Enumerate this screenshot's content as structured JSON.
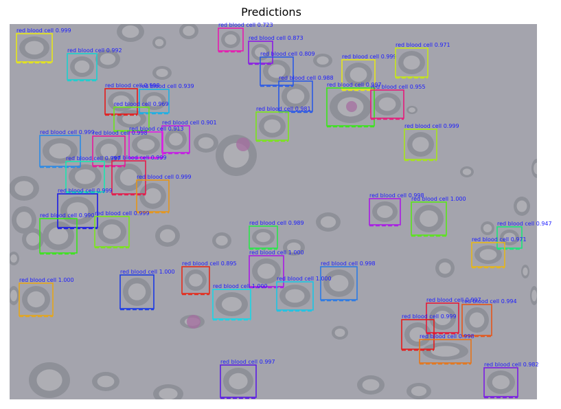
{
  "title": "Predictions",
  "image": {
    "background_color": "#a4a4ad",
    "cell_color": "#8e9098",
    "cell_inner_color": "#b6b5bb",
    "stain_color": "#a46ea0"
  },
  "label_text_color": "#1a1aff",
  "detections": [
    {
      "label": "red blood cell",
      "score": "0.999",
      "color": "#e6e61a"
    },
    {
      "label": "red blood cell",
      "score": "0.992",
      "color": "#1ad0d0"
    },
    {
      "label": "red blood cell",
      "score": "0.723",
      "color": "#e61ab0"
    },
    {
      "label": "red blood cell",
      "score": "0.873",
      "color": "#8a1ae6"
    },
    {
      "label": "red blood cell",
      "score": "0.809",
      "color": "#2a5ae6"
    },
    {
      "label": "red blood cell",
      "score": "0.999",
      "color": "#e6e61a"
    },
    {
      "label": "red blood cell",
      "score": "0.971",
      "color": "#c6e61a"
    },
    {
      "label": "red blood cell",
      "score": "0.988",
      "color": "#2a5ae6"
    },
    {
      "label": "red blood cell",
      "score": "0.997",
      "color": "#3ae61a"
    },
    {
      "label": "red blood cell",
      "score": "0.955",
      "color": "#e61a7a"
    },
    {
      "label": "red blood cell",
      "score": "0.998",
      "color": "#e61a1a"
    },
    {
      "label": "red blood cell",
      "score": "0.939",
      "color": "#1ab0e6"
    },
    {
      "label": "red blood cell",
      "score": "0.969",
      "color": "#6ae61a"
    },
    {
      "label": "red blood cell",
      "score": "0.981",
      "color": "#7ae61a"
    },
    {
      "label": "red blood cell",
      "score": "0.901",
      "color": "#c61ae6"
    },
    {
      "label": "red blood cell",
      "score": "0.913",
      "color": "#e61ae6"
    },
    {
      "label": "red blood cell",
      "score": "0.999",
      "color": "#a6e61a"
    },
    {
      "label": "red blood cell",
      "score": "0.999",
      "color": "#2a8ae6"
    },
    {
      "label": "red blood cell",
      "score": "0.998",
      "color": "#e61a9a"
    },
    {
      "label": "red blood cell",
      "score": "0.997",
      "color": "#1ae6b0"
    },
    {
      "label": "red blood cell",
      "score": "0.999",
      "color": "#e61a4a"
    },
    {
      "label": "red blood cell",
      "score": "0.999",
      "color": "#e6961a"
    },
    {
      "label": "red blood cell",
      "score": "0.999",
      "color": "#1a1ae6"
    },
    {
      "label": "red blood cell",
      "score": "0.990",
      "color": "#3ae61a"
    },
    {
      "label": "red blood cell",
      "score": "0.999",
      "color": "#7ae61a"
    },
    {
      "label": "red blood cell",
      "score": "0.998",
      "color": "#aa1ae6"
    },
    {
      "label": "red blood cell",
      "score": "1.000",
      "color": "#5ae61a"
    },
    {
      "label": "red blood cell",
      "score": "0.989",
      "color": "#2ae64a"
    },
    {
      "label": "red blood cell",
      "score": "0.947",
      "color": "#1ae67a"
    },
    {
      "label": "red blood cell",
      "score": "0.971",
      "color": "#e6b61a"
    },
    {
      "label": "red blood cell",
      "score": "1.000",
      "color": "#aa1ae6"
    },
    {
      "label": "red blood cell",
      "score": "0.895",
      "color": "#e62a1a"
    },
    {
      "label": "red blood cell",
      "score": "1.000",
      "color": "#1a3ae6"
    },
    {
      "label": "red blood cell",
      "score": "1.000",
      "color": "#e6a61a"
    },
    {
      "label": "red blood cell",
      "score": "1.000",
      "color": "#1ad6e6"
    },
    {
      "label": "red blood cell",
      "score": "1.000",
      "color": "#1ac6e6"
    },
    {
      "label": "red blood cell",
      "score": "0.998",
      "color": "#2a7ae6"
    },
    {
      "label": "red blood cell",
      "score": "0.997",
      "color": "#e61a3a"
    },
    {
      "label": "red blood cell",
      "score": "0.994",
      "color": "#e6561a"
    },
    {
      "label": "red blood cell",
      "score": "0.999",
      "color": "#e61a1a"
    },
    {
      "label": "red blood cell",
      "score": "0.998",
      "color": "#e6761a"
    },
    {
      "label": "red blood cell",
      "score": "0.997",
      "color": "#5a1ae6"
    },
    {
      "label": "red blood cell",
      "score": "0.982",
      "color": "#7a1ae6"
    }
  ]
}
